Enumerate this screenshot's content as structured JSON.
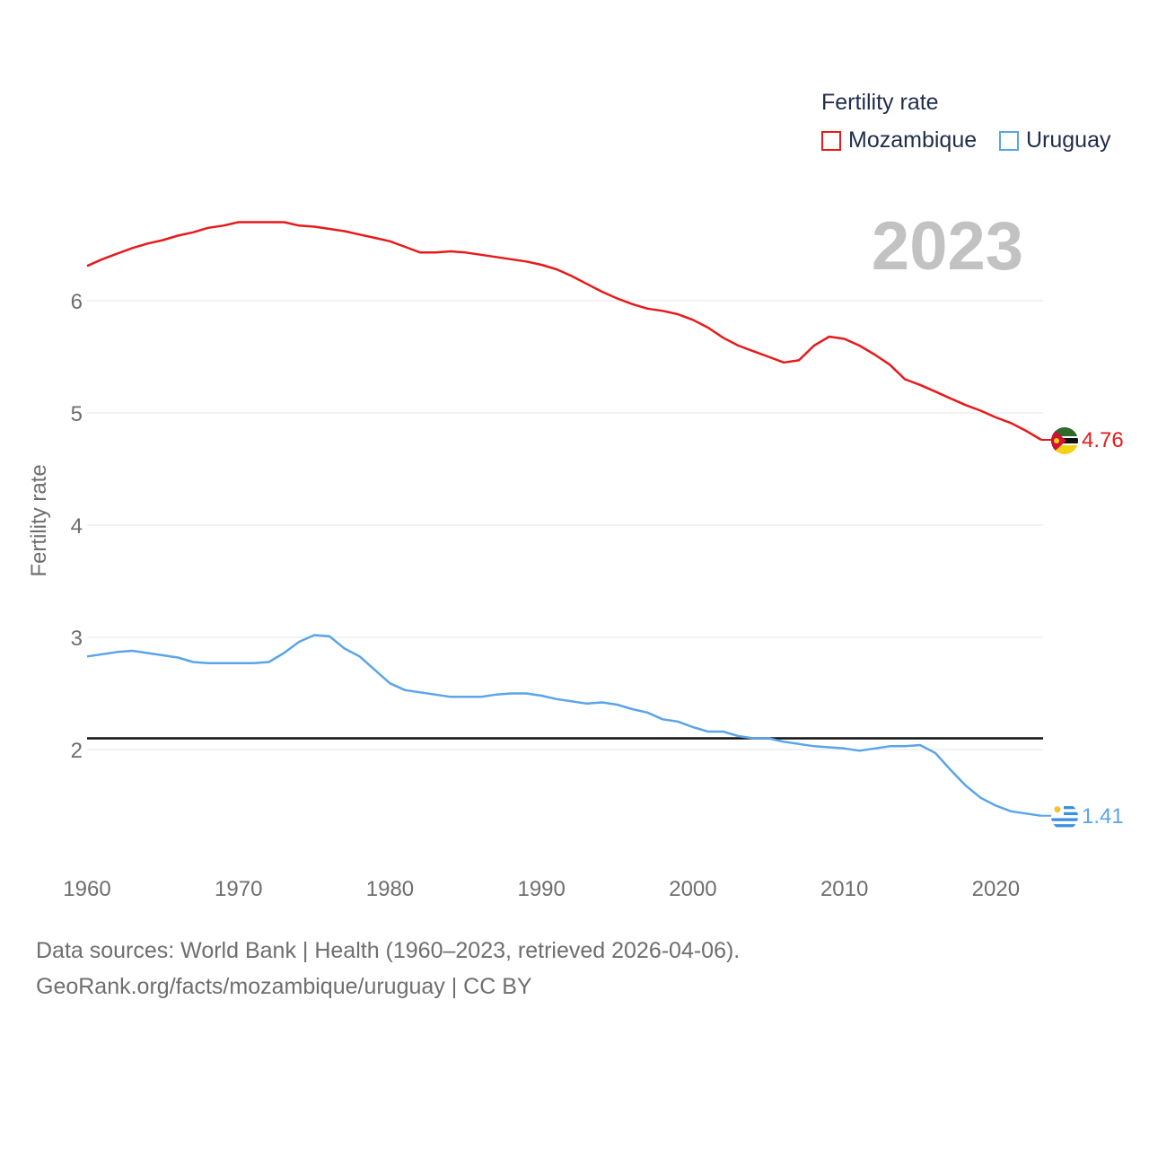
{
  "chart_data": {
    "type": "line",
    "title": "",
    "year_label": "2023",
    "legend_title": "Fertility rate",
    "xlabel": "",
    "ylabel": "Fertility rate",
    "xlim": [
      1960,
      2023
    ],
    "ylim": [
      1.0,
      7.0
    ],
    "x_ticks": [
      "1960",
      "1970",
      "1980",
      "1990",
      "2000",
      "2010",
      "2020"
    ],
    "y_ticks": [
      "2",
      "3",
      "4",
      "5",
      "6"
    ],
    "reference_line": 2.1,
    "series": [
      {
        "name": "Mozambique",
        "color": "#e8191a",
        "end_label": "4.76",
        "flag_icon": "mozambique-flag-icon",
        "x": [
          1960,
          1961,
          1962,
          1963,
          1964,
          1965,
          1966,
          1967,
          1968,
          1969,
          1970,
          1971,
          1972,
          1973,
          1974,
          1975,
          1976,
          1977,
          1978,
          1979,
          1980,
          1981,
          1982,
          1983,
          1984,
          1985,
          1986,
          1987,
          1988,
          1989,
          1990,
          1991,
          1992,
          1993,
          1994,
          1995,
          1996,
          1997,
          1998,
          1999,
          2000,
          2001,
          2002,
          2003,
          2004,
          2005,
          2006,
          2007,
          2008,
          2009,
          2010,
          2011,
          2012,
          2013,
          2014,
          2015,
          2016,
          2017,
          2018,
          2019,
          2020,
          2021,
          2022,
          2023
        ],
        "values": [
          6.31,
          6.37,
          6.42,
          6.47,
          6.51,
          6.54,
          6.58,
          6.61,
          6.65,
          6.67,
          6.7,
          6.7,
          6.7,
          6.7,
          6.67,
          6.66,
          6.64,
          6.62,
          6.59,
          6.56,
          6.53,
          6.48,
          6.43,
          6.43,
          6.44,
          6.43,
          6.41,
          6.39,
          6.37,
          6.35,
          6.32,
          6.28,
          6.22,
          6.15,
          6.08,
          6.02,
          5.97,
          5.93,
          5.91,
          5.88,
          5.83,
          5.76,
          5.67,
          5.6,
          5.55,
          5.5,
          5.45,
          5.47,
          5.6,
          5.68,
          5.66,
          5.6,
          5.52,
          5.43,
          5.3,
          5.25,
          5.19,
          5.13,
          5.07,
          5.02,
          4.96,
          4.91,
          4.84,
          4.76
        ]
      },
      {
        "name": "Uruguay",
        "color": "#5ba4e8",
        "end_label": "1.41",
        "flag_icon": "uruguay-flag-icon",
        "x": [
          1960,
          1961,
          1962,
          1963,
          1964,
          1965,
          1966,
          1967,
          1968,
          1969,
          1970,
          1971,
          1972,
          1973,
          1974,
          1975,
          1976,
          1977,
          1978,
          1979,
          1980,
          1981,
          1982,
          1983,
          1984,
          1985,
          1986,
          1987,
          1988,
          1989,
          1990,
          1991,
          1992,
          1993,
          1994,
          1995,
          1996,
          1997,
          1998,
          1999,
          2000,
          2001,
          2002,
          2003,
          2004,
          2005,
          2006,
          2007,
          2008,
          2009,
          2010,
          2011,
          2012,
          2013,
          2014,
          2015,
          2016,
          2017,
          2018,
          2019,
          2020,
          2021,
          2022,
          2023
        ],
        "values": [
          2.83,
          2.85,
          2.87,
          2.88,
          2.86,
          2.84,
          2.82,
          2.78,
          2.77,
          2.77,
          2.77,
          2.77,
          2.78,
          2.86,
          2.96,
          3.02,
          3.01,
          2.9,
          2.83,
          2.71,
          2.59,
          2.53,
          2.51,
          2.49,
          2.47,
          2.47,
          2.47,
          2.49,
          2.5,
          2.5,
          2.48,
          2.45,
          2.43,
          2.41,
          2.42,
          2.4,
          2.36,
          2.33,
          2.27,
          2.25,
          2.2,
          2.16,
          2.16,
          2.12,
          2.1,
          2.1,
          2.07,
          2.05,
          2.03,
          2.02,
          2.01,
          1.99,
          2.01,
          2.03,
          2.03,
          2.04,
          1.97,
          1.82,
          1.68,
          1.57,
          1.5,
          1.45,
          1.43,
          1.41
        ]
      }
    ]
  },
  "footer": {
    "line1": "Data sources: World Bank | Health (1960–2023, retrieved 2026-04-06).",
    "line2": "GeoRank.org/facts/mozambique/uruguay | CC BY"
  }
}
